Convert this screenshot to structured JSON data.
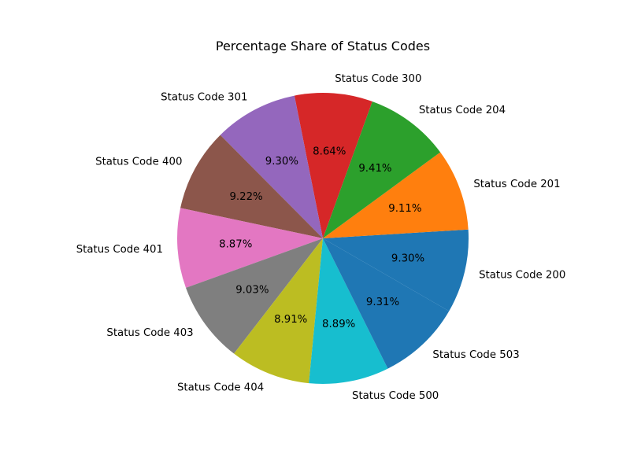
{
  "chart_data": {
    "type": "pie",
    "title": "Percentage Share of Status Codes",
    "categories": [
      "Status Code 200",
      "Status Code 201",
      "Status Code 204",
      "Status Code 300",
      "Status Code 301",
      "Status Code 400",
      "Status Code 401",
      "Status Code 403",
      "Status Code 404",
      "Status Code 500",
      "Status Code 503"
    ],
    "values": [
      9.3,
      9.11,
      9.41,
      8.64,
      9.3,
      9.22,
      8.87,
      9.03,
      8.91,
      8.89,
      9.31
    ],
    "value_labels": [
      "9.30%",
      "9.11%",
      "9.41%",
      "8.64%",
      "9.30%",
      "9.22%",
      "8.87%",
      "9.03%",
      "8.91%",
      "8.89%",
      "9.31%"
    ],
    "colors": [
      "#1f77b4",
      "#ff7f0e",
      "#2ca02c",
      "#d62728",
      "#9467bd",
      "#8c564b",
      "#e377c2",
      "#7f7f7f",
      "#bcbd22",
      "#17becf",
      "#1f77b4"
    ],
    "start_angle_deg": -30,
    "direction": "counterclockwise",
    "legend": "none"
  }
}
